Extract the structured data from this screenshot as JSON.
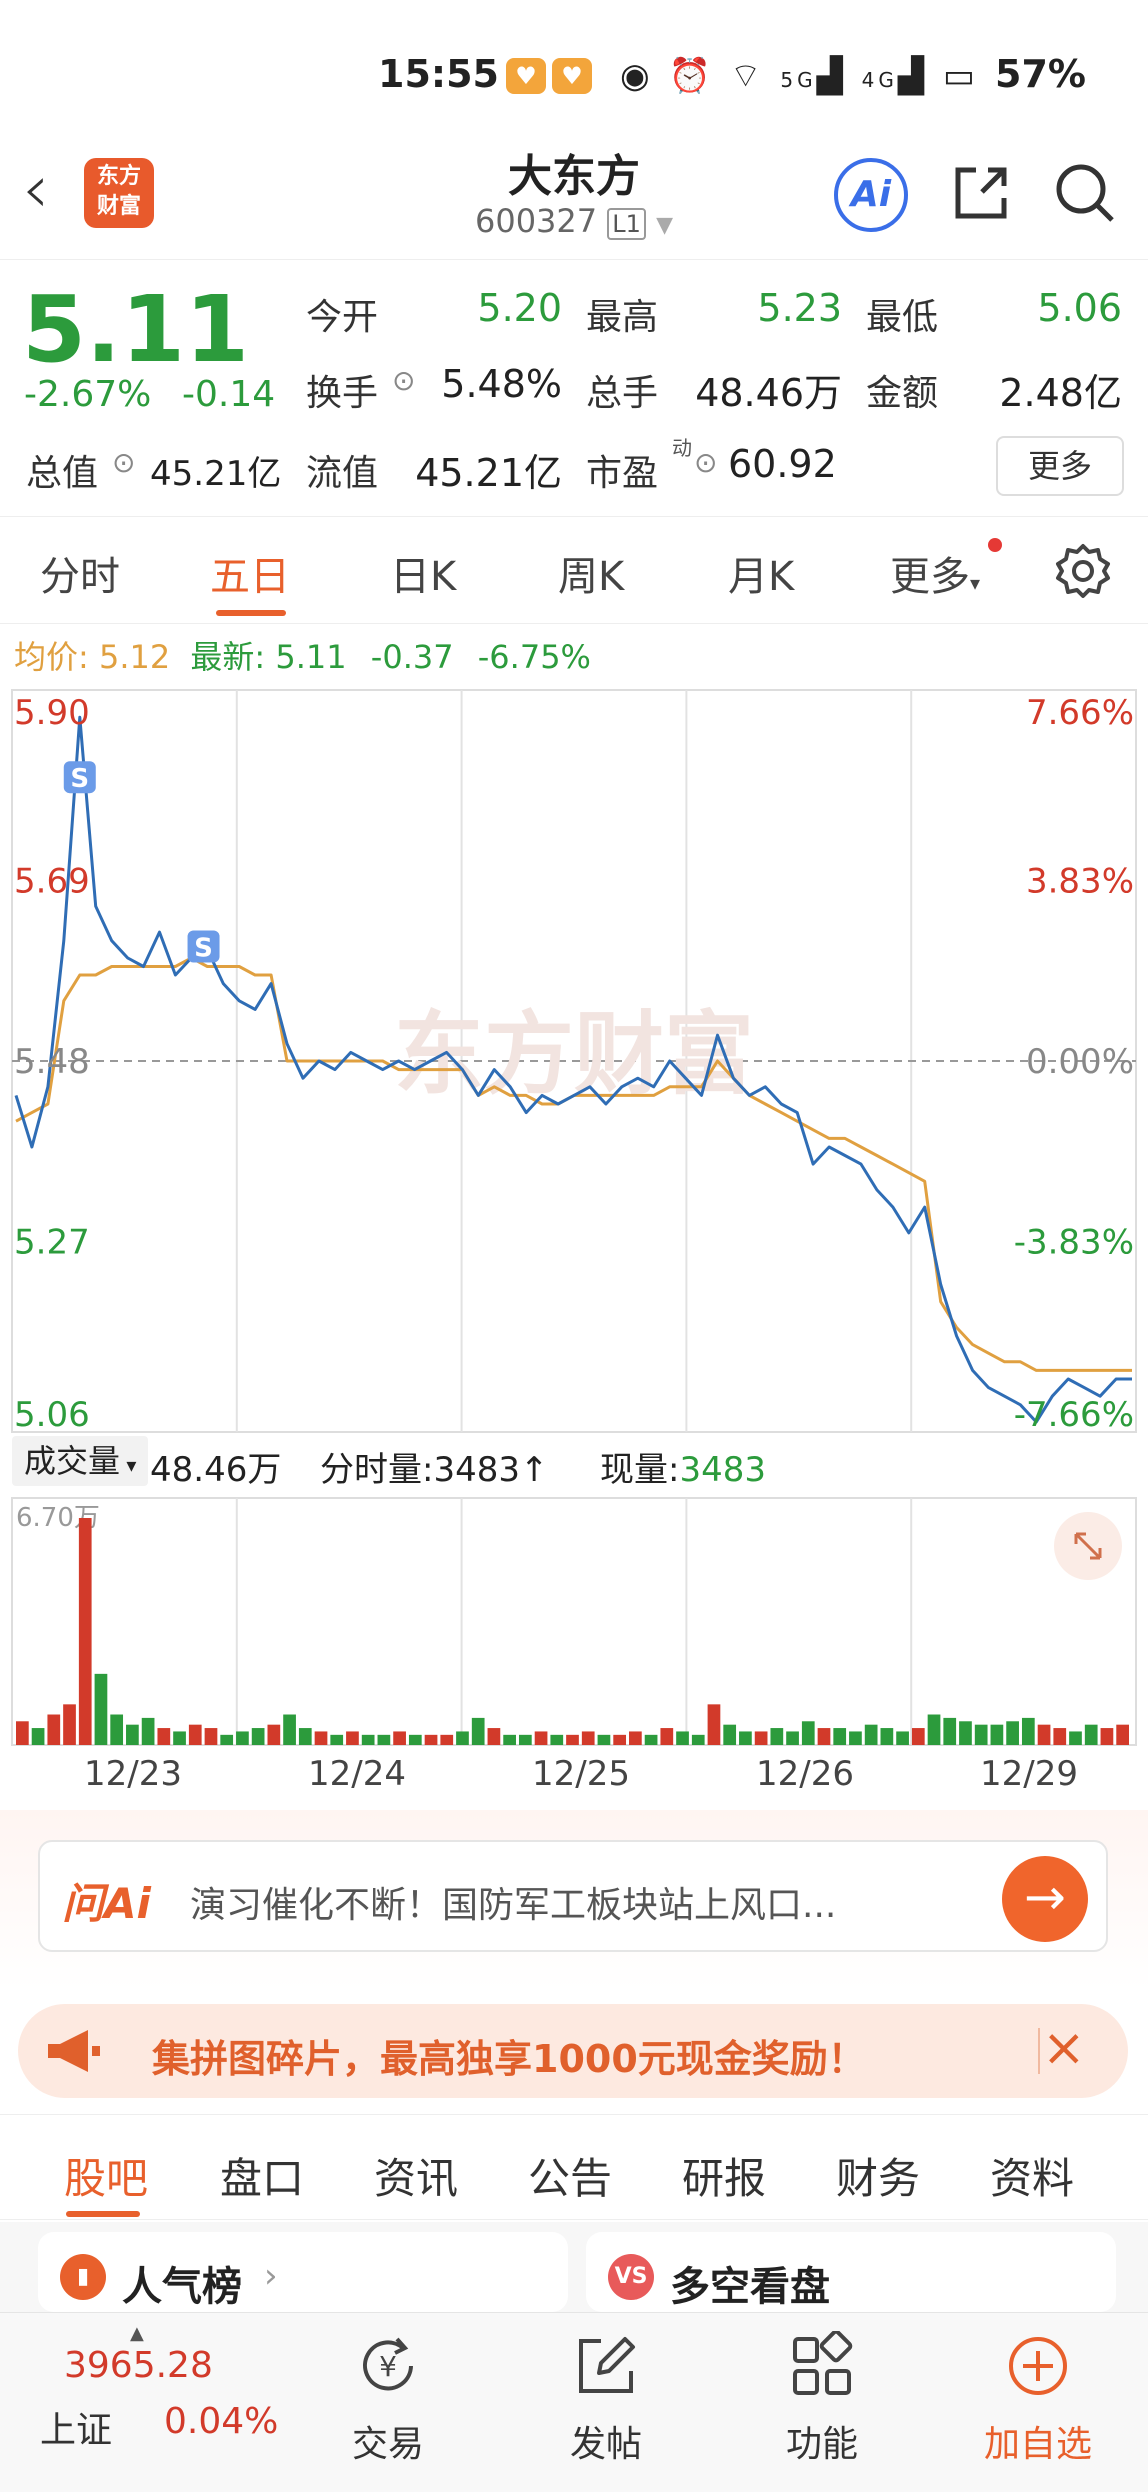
{
  "status_bar": {
    "time": "15:55",
    "net1": "5G",
    "net2": "4G",
    "battery": "57%"
  },
  "header": {
    "stock_name": "大东方",
    "stock_code": "600327",
    "code_badge": "L1",
    "logo_line1": "东方",
    "logo_line2": "财富",
    "ai_label": "Ai"
  },
  "quote": {
    "price": "5.11",
    "change_pct": "-2.67%",
    "change": "-0.14",
    "rows": [
      [
        {
          "label": "今开",
          "value": "5.20",
          "color": "down"
        },
        {
          "label": "最高",
          "value": "5.23",
          "color": "down"
        },
        {
          "label": "最低",
          "value": "5.06",
          "color": "down"
        }
      ],
      [
        {
          "label": "换手",
          "value": "5.48%",
          "color": "plain"
        },
        {
          "label": "总手",
          "value": "48.46万",
          "color": "plain"
        },
        {
          "label": "金额",
          "value": "2.48亿",
          "color": "plain"
        }
      ],
      [
        {
          "label": "总值",
          "value": "45.21亿",
          "color": "plain"
        },
        {
          "label": "流值",
          "value": "45.21亿",
          "color": "plain"
        },
        {
          "label": "市盈",
          "value": "60.92",
          "color": "plain"
        }
      ]
    ],
    "pe_superscript": "动",
    "more_label": "更多"
  },
  "tabs": [
    "分时",
    "五日",
    "日K",
    "周K",
    "月K",
    "更多"
  ],
  "active_tab": "五日",
  "avg_line": {
    "avg_label": "均价:",
    "avg_value": "5.12",
    "latest_label": "最新:",
    "latest_value": "5.11",
    "chg": "-0.37",
    "chg_pct": "-6.75%"
  },
  "chart_data": {
    "type": "line",
    "days": [
      "12/23",
      "12/24",
      "12/25",
      "12/26",
      "12/29"
    ],
    "y_left_ticks": [
      "5.90",
      "5.69",
      "5.48",
      "5.27",
      "5.06"
    ],
    "y_right_ticks": [
      "7.66%",
      "3.83%",
      "0.00%",
      "-3.83%",
      "-7.66%"
    ],
    "ylim": [
      5.06,
      5.9
    ],
    "prev_close": 5.48,
    "series": [
      {
        "name": "最新",
        "color": "#2f6db5",
        "values": [
          5.44,
          5.38,
          5.45,
          5.62,
          5.88,
          5.66,
          5.62,
          5.6,
          5.59,
          5.63,
          5.58,
          5.6,
          5.61,
          5.57,
          5.55,
          5.54,
          5.57,
          5.5,
          5.46,
          5.48,
          5.47,
          5.49,
          5.48,
          5.47,
          5.48,
          5.47,
          5.48,
          5.49,
          5.47,
          5.44,
          5.47,
          5.45,
          5.42,
          5.44,
          5.43,
          5.44,
          5.45,
          5.43,
          5.45,
          5.46,
          5.45,
          5.48,
          5.46,
          5.44,
          5.51,
          5.46,
          5.44,
          5.45,
          5.43,
          5.42,
          5.36,
          5.38,
          5.37,
          5.36,
          5.33,
          5.31,
          5.28,
          5.31,
          5.22,
          5.16,
          5.12,
          5.1,
          5.09,
          5.08,
          5.06,
          5.09,
          5.11,
          5.1,
          5.09,
          5.11,
          5.11
        ]
      },
      {
        "name": "均价",
        "color": "#e0a040",
        "values": [
          5.41,
          5.42,
          5.43,
          5.55,
          5.58,
          5.58,
          5.59,
          5.59,
          5.59,
          5.59,
          5.59,
          5.6,
          5.59,
          5.59,
          5.59,
          5.58,
          5.58,
          5.48,
          5.48,
          5.48,
          5.48,
          5.48,
          5.48,
          5.48,
          5.47,
          5.47,
          5.47,
          5.47,
          5.47,
          5.44,
          5.45,
          5.44,
          5.44,
          5.43,
          5.43,
          5.44,
          5.44,
          5.44,
          5.44,
          5.44,
          5.44,
          5.45,
          5.45,
          5.45,
          5.48,
          5.46,
          5.44,
          5.43,
          5.42,
          5.41,
          5.4,
          5.39,
          5.39,
          5.38,
          5.37,
          5.36,
          5.35,
          5.34,
          5.2,
          5.17,
          5.15,
          5.14,
          5.13,
          5.13,
          5.12,
          5.12,
          5.12,
          5.12,
          5.12,
          5.12,
          5.12
        ]
      }
    ],
    "trade_marker": "S",
    "watermark": "东方财富",
    "volume_max_label": "6.70万",
    "volume_peak": 6.7,
    "volume_unit": "万",
    "volume": [
      0.7,
      0.5,
      0.9,
      1.2,
      6.7,
      2.1,
      0.9,
      0.6,
      0.8,
      0.5,
      0.4,
      0.6,
      0.5,
      0.3,
      0.4,
      0.5,
      0.6,
      0.9,
      0.5,
      0.4,
      0.3,
      0.4,
      0.3,
      0.3,
      0.4,
      0.3,
      0.3,
      0.3,
      0.4,
      0.8,
      0.5,
      0.3,
      0.3,
      0.4,
      0.3,
      0.3,
      0.4,
      0.3,
      0.3,
      0.4,
      0.3,
      0.5,
      0.4,
      0.3,
      1.2,
      0.6,
      0.4,
      0.4,
      0.5,
      0.4,
      0.7,
      0.5,
      0.5,
      0.4,
      0.6,
      0.5,
      0.4,
      0.5,
      0.9,
      0.8,
      0.7,
      0.6,
      0.6,
      0.7,
      0.8,
      0.6,
      0.5,
      0.4,
      0.6,
      0.5,
      0.6
    ]
  },
  "volume_info": {
    "dropdown": "成交量",
    "total": "48.46万",
    "tick_label": "分时量:",
    "tick_value": "3483↑",
    "now_label": "现量:",
    "now_value": "3483"
  },
  "ai_search": {
    "logo": "问Ai",
    "text": "演习催化不断！国防军工板块站上风口..."
  },
  "promo": {
    "text": "集拼图碎片，最高独享1000元现金奖励！"
  },
  "section_tabs": [
    "股吧",
    "盘口",
    "资讯",
    "公告",
    "研报",
    "财务",
    "资料"
  ],
  "active_section": "股吧",
  "cards": [
    {
      "title": "人气榜",
      "icon": "chart-icon"
    },
    {
      "title": "多空看盘",
      "icon": "vs-icon",
      "badge": "VS"
    }
  ],
  "bottom_nav": {
    "index_value": "3965.28",
    "index_name": "上证",
    "index_pct": "0.04%",
    "items": [
      {
        "label": "交易",
        "icon": "yen-icon"
      },
      {
        "label": "发帖",
        "icon": "edit-icon"
      },
      {
        "label": "功能",
        "icon": "grid-icon"
      },
      {
        "label": "加自选",
        "icon": "plus-icon"
      }
    ]
  },
  "colors": {
    "up": "#d23a2a",
    "down": "#2c9b3c",
    "accent": "#e8602c",
    "price_line": "#2f6db5",
    "avg_line": "#e0a040"
  }
}
